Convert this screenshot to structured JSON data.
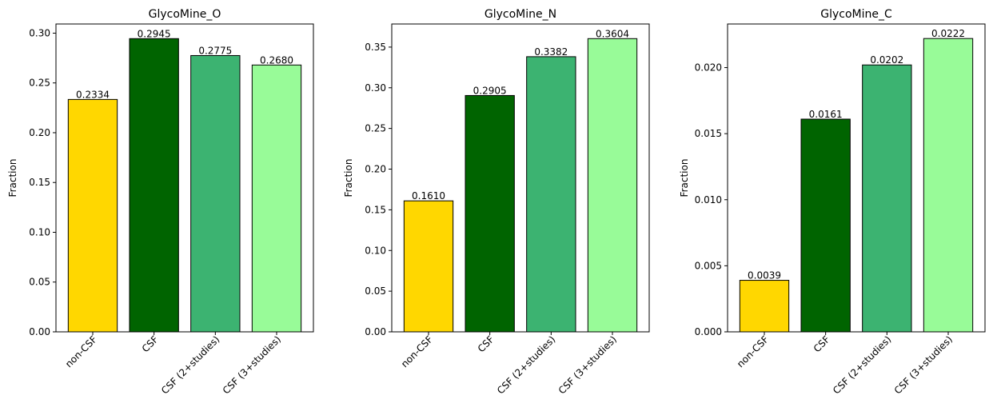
{
  "chart_data": [
    {
      "type": "bar",
      "title": "GlycoMine_O",
      "xlabel": "",
      "ylabel": "Fraction",
      "categories": [
        "non-CSF",
        "CSF",
        "CSF (2+studies)",
        "CSF (3+studies)"
      ],
      "values": [
        0.2334,
        0.2945,
        0.2775,
        0.268
      ],
      "value_labels": [
        "0.2334",
        "0.2945",
        "0.2775",
        "0.2680"
      ],
      "ylim": [
        0,
        0.3092
      ],
      "yticks": [
        0.0,
        0.05,
        0.1,
        0.15,
        0.2,
        0.25,
        0.3
      ],
      "ytick_labels": [
        "0.00",
        "0.05",
        "0.10",
        "0.15",
        "0.20",
        "0.25",
        "0.30"
      ],
      "colors": [
        "#FFD700",
        "#006400",
        "#3CB371",
        "#98FB98"
      ]
    },
    {
      "type": "bar",
      "title": "GlycoMine_N",
      "xlabel": "",
      "ylabel": "Fraction",
      "categories": [
        "non-CSF",
        "CSF",
        "CSF (2+studies)",
        "CSF (3+studies)"
      ],
      "values": [
        0.161,
        0.2905,
        0.3382,
        0.3604
      ],
      "value_labels": [
        "0.1610",
        "0.2905",
        "0.3382",
        "0.3604"
      ],
      "ylim": [
        0,
        0.3784
      ],
      "yticks": [
        0.0,
        0.05,
        0.1,
        0.15,
        0.2,
        0.25,
        0.3,
        0.35
      ],
      "ytick_labels": [
        "0.00",
        "0.05",
        "0.10",
        "0.15",
        "0.20",
        "0.25",
        "0.30",
        "0.35"
      ],
      "colors": [
        "#FFD700",
        "#006400",
        "#3CB371",
        "#98FB98"
      ]
    },
    {
      "type": "bar",
      "title": "GlycoMine_C",
      "xlabel": "",
      "ylabel": "Fraction",
      "categories": [
        "non-CSF",
        "CSF",
        "CSF (2+studies)",
        "CSF (3+studies)"
      ],
      "values": [
        0.0039,
        0.0161,
        0.0202,
        0.0222
      ],
      "value_labels": [
        "0.0039",
        "0.0161",
        "0.0202",
        "0.0222"
      ],
      "ylim": [
        0,
        0.0233
      ],
      "yticks": [
        0.0,
        0.005,
        0.01,
        0.015,
        0.02
      ],
      "ytick_labels": [
        "0.000",
        "0.005",
        "0.010",
        "0.015",
        "0.020"
      ],
      "colors": [
        "#FFD700",
        "#006400",
        "#3CB371",
        "#98FB98"
      ]
    }
  ]
}
